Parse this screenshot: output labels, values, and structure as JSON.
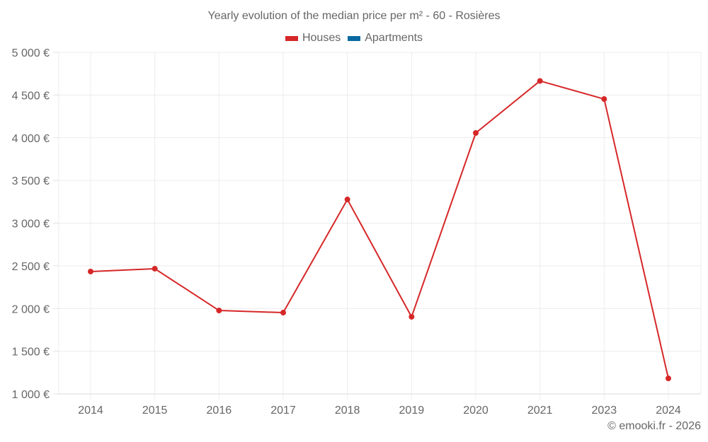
{
  "title": "Yearly evolution of the median price per m² - 60 - Rosières",
  "legend": [
    {
      "label": "Houses",
      "color": "#d62728"
    },
    {
      "label": "Apartments",
      "color": "#0a6aa1"
    }
  ],
  "credit": "© emooki.fr - 2026",
  "chart_data": {
    "type": "line",
    "title": "Yearly evolution of the median price per m² - 60 - Rosières",
    "xlabel": "",
    "ylabel": "",
    "categories": [
      "2014",
      "2015",
      "2016",
      "2017",
      "2018",
      "2019",
      "2020",
      "2021",
      "2023",
      "2024"
    ],
    "series": [
      {
        "name": "Houses",
        "color": "#d62728",
        "values": [
          2433,
          2466,
          1977,
          1952,
          3277,
          1903,
          4056,
          4665,
          4453,
          1182
        ]
      },
      {
        "name": "Apartments",
        "color": "#0a6aa1",
        "values": []
      }
    ],
    "ylim": [
      1000,
      5000
    ],
    "yticks": [
      1000,
      1500,
      2000,
      2500,
      3000,
      3500,
      4000,
      4500,
      5000
    ],
    "ytick_labels": [
      "1 000 €",
      "1 500 €",
      "2 000 €",
      "2 500 €",
      "3 000 €",
      "3 500 €",
      "4 000 €",
      "4 500 €",
      "5 000 €"
    ],
    "grid": true,
    "legend_position": "top"
  }
}
